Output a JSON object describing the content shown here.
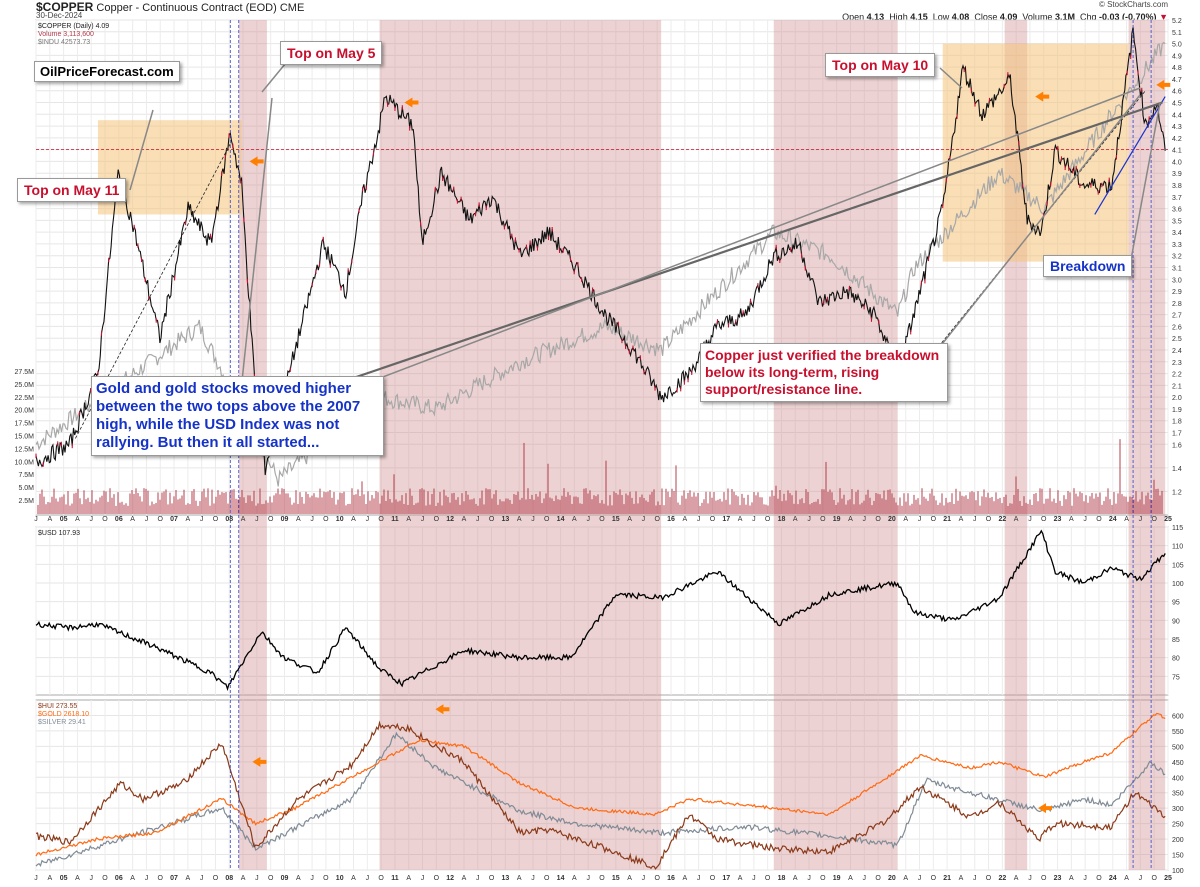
{
  "header": {
    "symbol": "$COPPER",
    "description": "Copper - Continuous Contract (EOD)",
    "exchange": "CME",
    "date": "30-Dec-2024",
    "brand": "© StockCharts.com",
    "open_label": "Open",
    "open": "4.13",
    "high_label": "High",
    "high": "4.15",
    "low_label": "Low",
    "low": "4.08",
    "close_label": "Close",
    "close": "4.09",
    "volume_label": "Volume",
    "volume": "3.1M",
    "chg_label": "Chg",
    "chg": "-0.03 (-0.70%)"
  },
  "legends": {
    "copper": "$COPPER (Daily) 4.09",
    "volume": "Volume 3,113,600",
    "indu": "$INDU 42573.73",
    "usd": "$USD 107.93",
    "hui": "$HUI 273.55",
    "gold": "$GOLD 2618.10",
    "silver": "$SILVER 29.41"
  },
  "callouts": {
    "site": "OilPriceForecast.com",
    "top_may11": "Top on May 11",
    "top_may5": "Top on May 5",
    "top_may10": "Top on May 10",
    "breakdown": "Breakdown",
    "gold_note": "Gold and gold stocks moved higher between the two tops above the 2007 high, while the USD Index was not rallying. But then it all started...",
    "copper_note": "Copper just verified the breakdown below its long-term, rising support/resistance line."
  },
  "colors": {
    "copper_line": "#111111",
    "down_candle": "#c8102e",
    "indu": "#a8a8a8",
    "volume": "#b23a48",
    "usd": "#000000",
    "hui": "#8b3a1a",
    "gold": "#ff6a13",
    "silver": "#808b96",
    "shade_red": "#cd8a8a",
    "shade_orange": "#f4c37a",
    "arrow": "#ff7f00",
    "trend_blue": "#1a33d0"
  },
  "x_axis_labels": [
    "J",
    "A",
    "05",
    "A",
    "J",
    "O",
    "06",
    "A",
    "J",
    "O",
    "07",
    "A",
    "J",
    "O",
    "08",
    "A",
    "J",
    "O",
    "09",
    "A",
    "J",
    "O",
    "10",
    "A",
    "J",
    "O",
    "11",
    "A",
    "J",
    "O",
    "12",
    "A",
    "J",
    "O",
    "13",
    "A",
    "J",
    "O",
    "14",
    "A",
    "J",
    "O",
    "15",
    "A",
    "J",
    "O",
    "16",
    "A",
    "J",
    "O",
    "17",
    "A",
    "J",
    "O",
    "18",
    "A",
    "J",
    "O",
    "19",
    "A",
    "J",
    "O",
    "20",
    "A",
    "J",
    "O",
    "21",
    "A",
    "J",
    "O",
    "22",
    "A",
    "J",
    "O",
    "23",
    "A",
    "J",
    "O",
    "24",
    "A",
    "J",
    "O",
    "25"
  ],
  "chart_data": [
    {
      "type": "line",
      "title": "$COPPER (Daily) 4.09",
      "x_range": [
        2004.9,
        2025.0
      ],
      "ylim": [
        1.0,
        5.2
      ],
      "y_ticks": [
        1.2,
        1.4,
        1.6,
        1.7,
        1.8,
        1.9,
        2.0,
        2.1,
        2.2,
        2.3,
        2.4,
        2.5,
        2.6,
        2.7,
        2.8,
        2.9,
        3.0,
        3.1,
        3.2,
        3.3,
        3.4,
        3.5,
        3.6,
        3.7,
        3.8,
        3.9,
        4.0,
        4.1,
        4.2,
        4.3,
        4.4,
        4.5,
        4.6,
        4.7,
        4.8,
        4.9,
        5.0,
        5.1,
        5.2
      ],
      "volume_ticks": [
        "2.5M",
        "5.0M",
        "7.5M",
        "10.0M",
        "12.5M",
        "15.0M",
        "17.5M",
        "20.0M",
        "22.5M",
        "25.0M",
        "27.5M"
      ],
      "series": [
        {
          "name": "$COPPER",
          "x": [
            2004.9,
            2005.5,
            2006.0,
            2006.36,
            2006.6,
            2007.1,
            2007.6,
            2008.0,
            2008.35,
            2008.55,
            2008.8,
            2008.97,
            2009.5,
            2010.0,
            2010.4,
            2010.7,
            2011.0,
            2011.1,
            2011.6,
            2011.75,
            2012.1,
            2012.6,
            2013.0,
            2013.5,
            2014.0,
            2014.5,
            2015.0,
            2015.5,
            2016.0,
            2016.5,
            2017.0,
            2017.5,
            2018.0,
            2018.45,
            2018.8,
            2019.3,
            2019.8,
            2020.2,
            2020.6,
            2021.0,
            2021.36,
            2021.7,
            2022.2,
            2022.5,
            2022.75,
            2023.0,
            2023.5,
            2024.0,
            2024.38,
            2024.6,
            2024.8,
            2024.95
          ],
          "values": [
            1.45,
            1.6,
            2.2,
            3.9,
            3.5,
            2.5,
            3.6,
            3.3,
            4.25,
            3.8,
            2.0,
            1.4,
            2.4,
            3.3,
            2.9,
            3.7,
            4.3,
            4.55,
            4.3,
            3.3,
            3.9,
            3.5,
            3.7,
            3.2,
            3.4,
            3.1,
            2.7,
            2.4,
            2.0,
            2.2,
            2.6,
            2.7,
            3.2,
            3.3,
            2.8,
            2.9,
            2.7,
            2.2,
            2.9,
            3.6,
            4.8,
            4.4,
            4.7,
            3.5,
            3.4,
            4.1,
            3.8,
            3.8,
            5.1,
            4.3,
            4.5,
            4.09
          ]
        },
        {
          "name": "$INDU",
          "x": [
            2004.9,
            2007.8,
            2009.2,
            2011.0,
            2012.0,
            2013.5,
            2015.0,
            2016.0,
            2018.0,
            2019.0,
            2020.2,
            2020.5,
            2022.0,
            2022.8,
            2024.0,
            2024.95
          ],
          "values": [
            1.6,
            2.6,
            1.3,
            2.0,
            1.9,
            2.3,
            2.6,
            2.4,
            3.4,
            3.2,
            2.7,
            3.1,
            3.9,
            3.6,
            4.4,
            5.0
          ]
        }
      ],
      "shaded_periods": [
        [
          2008.5,
          2009.0
        ],
        [
          2011.0,
          2016.0
        ],
        [
          2018.0,
          2020.2
        ],
        [
          2022.1,
          2022.5
        ],
        [
          2024.3,
          2024.95
        ]
      ],
      "highlight_boxes": [
        [
          2006.0,
          2008.55
        ],
        [
          2021.0,
          2024.3
        ]
      ]
    },
    {
      "type": "line",
      "title": "$USD 107.93",
      "ylim": [
        70,
        115
      ],
      "y_ticks": [
        75,
        80,
        85,
        90,
        95,
        100,
        105,
        110,
        115
      ],
      "series": [
        {
          "name": "$USD",
          "x": [
            2004.9,
            2005.5,
            2006.0,
            2007.0,
            2008.0,
            2008.3,
            2008.9,
            2009.3,
            2009.9,
            2010.4,
            2011.0,
            2011.4,
            2012.5,
            2013.5,
            2014.4,
            2015.2,
            2016.0,
            2017.0,
            2018.1,
            2019.0,
            2020.2,
            2020.5,
            2021.2,
            2022.0,
            2022.75,
            2023.0,
            2023.5,
            2024.0,
            2024.5,
            2024.95
          ],
          "values": [
            89,
            88,
            89,
            83,
            76,
            72,
            87,
            80,
            76,
            88,
            77,
            73,
            82,
            80,
            80,
            97,
            96,
            103,
            89,
            97,
            100,
            92,
            90,
            96,
            114,
            103,
            100,
            104,
            101,
            107.93
          ]
        }
      ]
    },
    {
      "type": "line",
      "title": "$HUI / $GOLD / $SILVER",
      "ylim": [
        100,
        650
      ],
      "y_ticks": [
        100,
        150,
        200,
        250,
        300,
        350,
        400,
        450,
        500,
        550,
        600
      ],
      "series": [
        {
          "name": "$HUI",
          "x": [
            2004.9,
            2005.5,
            2006.4,
            2006.8,
            2007.5,
            2008.2,
            2008.8,
            2009.5,
            2010.0,
            2010.5,
            2011.0,
            2011.5,
            2012.0,
            2012.5,
            2013.0,
            2013.5,
            2014.0,
            2015.0,
            2015.9,
            2016.5,
            2017.0,
            2018.0,
            2019.0,
            2020.0,
            2020.6,
            2021.5,
            2022.0,
            2022.7,
            2023.0,
            2024.0,
            2024.4,
            2024.95
          ],
          "values": [
            210,
            190,
            380,
            330,
            380,
            510,
            170,
            320,
            380,
            440,
            570,
            560,
            500,
            450,
            330,
            220,
            230,
            170,
            110,
            280,
            200,
            170,
            160,
            260,
            370,
            270,
            320,
            200,
            250,
            240,
            350,
            273.55
          ]
        },
        {
          "name": "$GOLD",
          "x": [
            2004.9,
            2006.0,
            2007.0,
            2008.2,
            2008.8,
            2009.5,
            2010.5,
            2011.7,
            2012.5,
            2013.5,
            2014.5,
            2015.9,
            2016.5,
            2018.0,
            2019.0,
            2020.6,
            2021.5,
            2022.0,
            2022.8,
            2023.5,
            2024.0,
            2024.8,
            2024.95
          ],
          "values": [
            150,
            200,
            220,
            330,
            250,
            300,
            400,
            520,
            500,
            380,
            300,
            280,
            330,
            300,
            280,
            470,
            430,
            450,
            400,
            450,
            480,
            610,
            590
          ]
        },
        {
          "name": "$SILVER",
          "x": [
            2004.9,
            2006.4,
            2008.2,
            2008.8,
            2010.5,
            2011.3,
            2012.0,
            2013.5,
            2014.5,
            2016.0,
            2017.5,
            2019.0,
            2020.2,
            2020.7,
            2021.5,
            2022.8,
            2023.5,
            2024.0,
            2024.7,
            2024.95
          ],
          "values": [
            115,
            200,
            300,
            170,
            330,
            540,
            430,
            290,
            250,
            220,
            240,
            210,
            180,
            390,
            350,
            290,
            330,
            310,
            450,
            410
          ]
        }
      ]
    }
  ]
}
